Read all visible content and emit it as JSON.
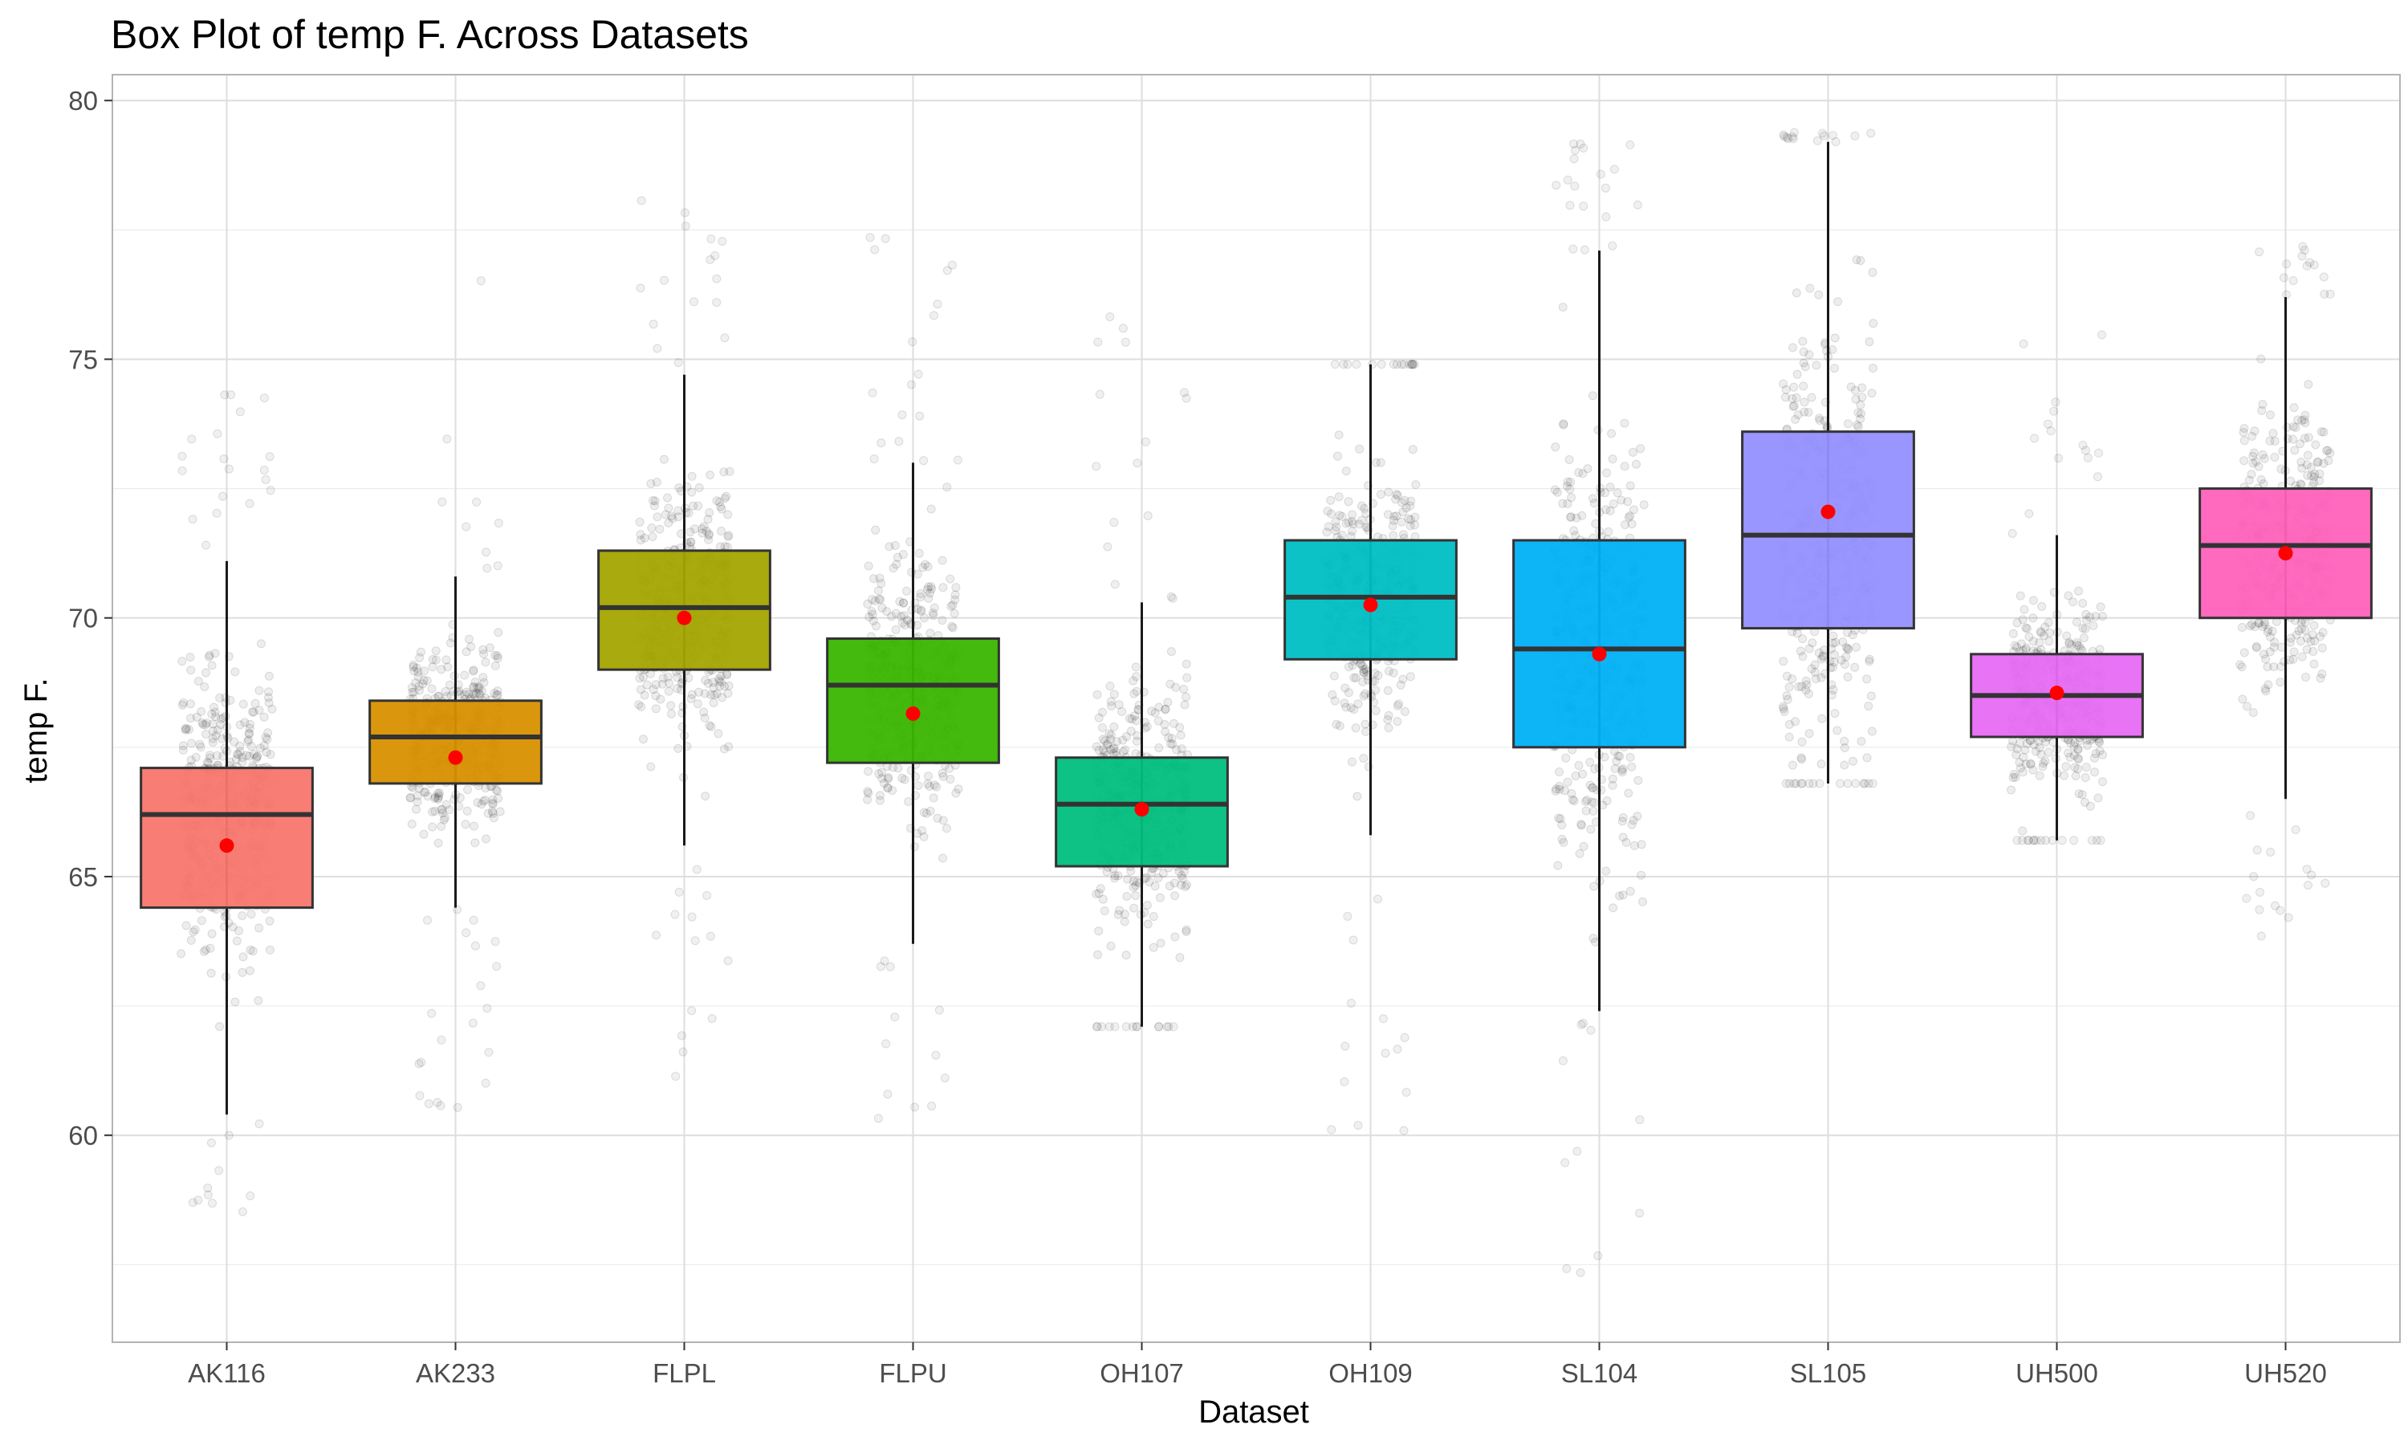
{
  "chart_data": {
    "type": "box",
    "title": "Box Plot of temp F. Across Datasets",
    "xlabel": "Dataset",
    "ylabel": "temp F.",
    "ylim": [
      56,
      80.5
    ],
    "yticks": [
      60,
      65,
      70,
      75,
      80
    ],
    "y_minor_ticks": [
      57.5,
      62.5,
      67.5,
      72.5,
      77.5
    ],
    "grid": true,
    "legend": "none",
    "mean_marker_color": "#ff0000",
    "point_color": "#000000",
    "categories": [
      "AK116",
      "AK233",
      "FLPL",
      "FLPU",
      "OH107",
      "OH109",
      "SL104",
      "SL105",
      "UH500",
      "UH520"
    ],
    "boxes": [
      {
        "name": "AK116",
        "color": "#F8766D",
        "whisker_low": 60.4,
        "q1": 64.4,
        "median": 66.2,
        "q3": 67.1,
        "whisker_high": 71.1,
        "mean": 65.6,
        "points_min": 58.3,
        "points_max": 74.5
      },
      {
        "name": "AK233",
        "color": "#D89000",
        "whisker_low": 64.4,
        "q1": 66.8,
        "median": 67.7,
        "q3": 68.4,
        "whisker_high": 70.8,
        "mean": 67.3,
        "points_min": 60.5,
        "points_max": 76.8
      },
      {
        "name": "FLPL",
        "color": "#A3A500",
        "whisker_low": 65.6,
        "q1": 69.0,
        "median": 70.2,
        "q3": 71.3,
        "whisker_high": 74.7,
        "mean": 70.0,
        "points_min": 60.9,
        "points_max": 78.6
      },
      {
        "name": "FLPU",
        "color": "#39B600",
        "whisker_low": 63.7,
        "q1": 67.2,
        "median": 68.7,
        "q3": 69.6,
        "whisker_high": 73.0,
        "mean": 68.15,
        "points_min": 60.1,
        "points_max": 77.4
      },
      {
        "name": "OH107",
        "color": "#00BF7D",
        "whisker_low": 62.1,
        "q1": 65.2,
        "median": 66.4,
        "q3": 67.3,
        "whisker_high": 70.3,
        "mean": 66.3,
        "points_min": 62.1,
        "points_max": 77.5
      },
      {
        "name": "OH109",
        "color": "#00BFC4",
        "whisker_low": 65.8,
        "q1": 69.2,
        "median": 70.4,
        "q3": 71.5,
        "whisker_high": 74.9,
        "mean": 70.25,
        "points_min": 59.8,
        "points_max": 74.9
      },
      {
        "name": "SL104",
        "color": "#00B0F6",
        "whisker_low": 62.4,
        "q1": 67.5,
        "median": 69.4,
        "q3": 71.5,
        "whisker_high": 77.1,
        "mean": 69.3,
        "points_min": 56.9,
        "points_max": 79.6
      },
      {
        "name": "SL105",
        "color": "#9590FF",
        "whisker_low": 66.8,
        "q1": 69.8,
        "median": 71.6,
        "q3": 73.6,
        "whisker_high": 79.2,
        "mean": 72.05,
        "points_min": 66.8,
        "points_max": 79.4
      },
      {
        "name": "UH500",
        "color": "#E76BF3",
        "whisker_low": 65.7,
        "q1": 67.7,
        "median": 68.5,
        "q3": 69.3,
        "whisker_high": 71.6,
        "mean": 68.55,
        "points_min": 65.7,
        "points_max": 76.3
      },
      {
        "name": "UH520",
        "color": "#FF62BC",
        "whisker_low": 66.5,
        "q1": 70.0,
        "median": 71.4,
        "q3": 72.5,
        "whisker_high": 76.2,
        "mean": 71.25,
        "points_min": 63.2,
        "points_max": 77.2
      }
    ]
  }
}
